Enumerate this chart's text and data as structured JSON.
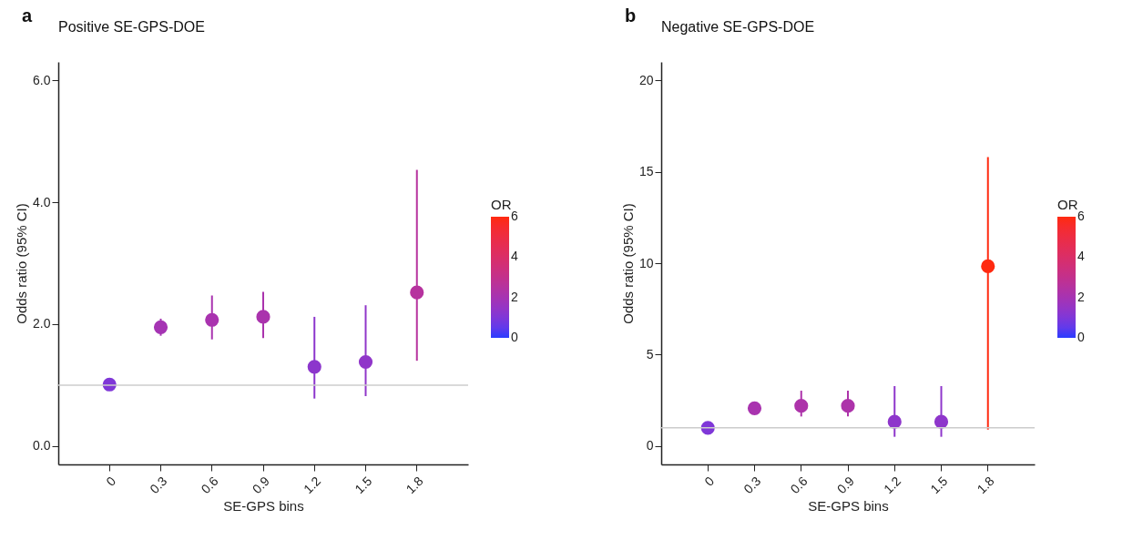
{
  "chart_data": [
    {
      "type": "scatter",
      "title": "Positive SE-GPS-DOE",
      "xlabel": "SE-GPS bins",
      "ylabel": "Odds ratio (95% CI)",
      "clabel": "OR",
      "clim": [
        0,
        6
      ],
      "cticks": [
        0,
        2,
        4,
        6
      ],
      "annotations": [
        "a"
      ],
      "categories": [
        "0",
        "0.3",
        "0.6",
        "0.9",
        "1.2",
        "1.5",
        "1.8"
      ],
      "ylim": [
        -0.3,
        6.3
      ],
      "yticks": [
        {
          "value": 0,
          "label": "0.0"
        },
        {
          "value": 2,
          "label": "2.0"
        },
        {
          "value": 4,
          "label": "4.0"
        },
        {
          "value": 6,
          "label": "6.0"
        }
      ],
      "marker": "circle",
      "ref_lines": [
        {
          "axis": "y",
          "value": 1,
          "color": "#cccccc"
        }
      ],
      "series": [
        {
          "values": [
            1.01,
            1.95,
            2.07,
            2.12,
            1.3,
            1.38,
            2.52
          ],
          "cvalues": [
            1.01,
            1.95,
            2.07,
            2.12,
            1.3,
            1.38,
            2.52
          ],
          "errors": [
            null,
            [
              1.81,
              2.09
            ],
            [
              1.75,
              2.47
            ],
            [
              1.77,
              2.53
            ],
            [
              0.78,
              2.12
            ],
            [
              0.82,
              2.31
            ],
            [
              1.4,
              4.53
            ]
          ]
        }
      ]
    },
    {
      "type": "scatter",
      "title": "Negative SE-GPS-DOE",
      "xlabel": "SE-GPS bins",
      "ylabel": "Odds ratio (95% CI)",
      "clabel": "OR",
      "clim": [
        0,
        6
      ],
      "cticks": [
        0,
        2,
        4,
        6
      ],
      "annotations": [
        "b"
      ],
      "categories": [
        "0",
        "0.3",
        "0.6",
        "0.9",
        "1.2",
        "1.5",
        "1.8"
      ],
      "ylim": [
        -1,
        21
      ],
      "yticks": [
        0,
        5,
        10,
        15,
        20
      ],
      "marker": "circle",
      "ref_lines": [
        {
          "axis": "y",
          "value": 1,
          "color": "#cccccc"
        }
      ],
      "series": [
        {
          "values": [
            1.0,
            2.07,
            2.2,
            2.2,
            1.33,
            1.33,
            9.83
          ],
          "cvalues": [
            1.0,
            2.07,
            2.2,
            2.2,
            1.33,
            1.33,
            9.83
          ],
          "errors": [
            null,
            null,
            [
              1.62,
              3.03
            ],
            [
              1.62,
              3.03
            ],
            [
              0.51,
              3.28
            ],
            [
              0.51,
              3.28
            ],
            [
              0.91,
              15.8
            ]
          ]
        }
      ]
    }
  ]
}
